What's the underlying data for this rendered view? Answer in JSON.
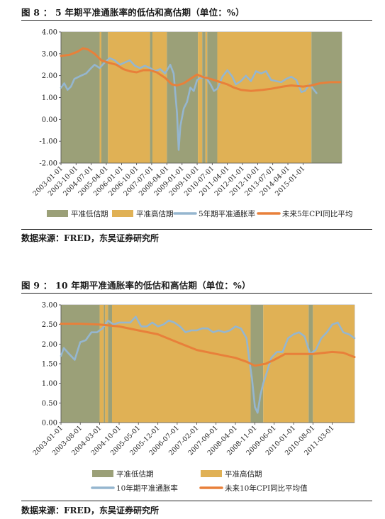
{
  "figures": [
    {
      "title": "图 8 ： 5 年期平准通胀率的低估和高估期（单位：%）",
      "source": "数据来源：FRED，东吴证券研究所"
    },
    {
      "title": "图 9 ： 10 年期平准通胀率的低估和高估期（单位：%）",
      "source": "数据来源：FRED，东吴证券研究所"
    }
  ],
  "colors": {
    "under": "#9ba078",
    "over": "#e0b155",
    "breakeven": "#95b6cf",
    "cpi": "#e8803a"
  },
  "chart_data": [
    {
      "type": "line",
      "ylim": [
        -2.0,
        4.0
      ],
      "yticks": [
        "4.00",
        "3.00",
        "2.00",
        "1.00",
        "0.00",
        "-1.00",
        "-2.00"
      ],
      "xlim": [
        "2003-01-01",
        "2016-12-01"
      ],
      "xticks": [
        "2003-01-01",
        "2003-10-01",
        "2004-07-01",
        "2005-04-01",
        "2006-01-01",
        "2006-10-01",
        "2007-07-01",
        "2008-04-01",
        "2009-01-01",
        "2009-10-01",
        "2010-07-01",
        "2011-04-01",
        "2012-01-01",
        "2012-10-01",
        "2013-07-01",
        "2014-04-01",
        "2015-01-01"
      ],
      "shaded_periods": [
        {
          "type": "under",
          "start": "2003-01-01",
          "end": "2004-12-01"
        },
        {
          "type": "over",
          "start": "2004-12-01",
          "end": "2005-01-01"
        },
        {
          "type": "under",
          "start": "2005-01-01",
          "end": "2005-05-01"
        },
        {
          "type": "over",
          "start": "2005-05-01",
          "end": "2007-06-01"
        },
        {
          "type": "under",
          "start": "2007-06-01",
          "end": "2007-07-15"
        },
        {
          "type": "over",
          "start": "2007-07-15",
          "end": "2008-04-01"
        },
        {
          "type": "under",
          "start": "2008-04-01",
          "end": "2009-10-15"
        },
        {
          "type": "over",
          "start": "2009-10-15",
          "end": "2010-01-01"
        },
        {
          "type": "under",
          "start": "2010-01-01",
          "end": "2010-03-01"
        },
        {
          "type": "over",
          "start": "2010-03-01",
          "end": "2010-04-01"
        },
        {
          "type": "under",
          "start": "2010-04-01",
          "end": "2010-10-01"
        },
        {
          "type": "over",
          "start": "2010-10-01",
          "end": "2015-06-01"
        },
        {
          "type": "under",
          "start": "2015-06-01",
          "end": "2016-12-01"
        }
      ],
      "series": [
        {
          "name": "5年期平准通胀率",
          "kind": "breakeven",
          "points": [
            [
              "2003-01-01",
              1.45
            ],
            [
              "2003-03-01",
              1.65
            ],
            [
              "2003-05-01",
              1.35
            ],
            [
              "2003-07-01",
              1.5
            ],
            [
              "2003-09-01",
              1.85
            ],
            [
              "2004-01-01",
              2.0
            ],
            [
              "2004-04-01",
              2.1
            ],
            [
              "2004-07-01",
              2.35
            ],
            [
              "2004-09-01",
              2.5
            ],
            [
              "2004-12-01",
              2.35
            ],
            [
              "2005-03-01",
              2.6
            ],
            [
              "2005-06-01",
              2.8
            ],
            [
              "2005-09-01",
              2.7
            ],
            [
              "2005-12-01",
              2.5
            ],
            [
              "2006-03-01",
              2.6
            ],
            [
              "2006-06-01",
              2.7
            ],
            [
              "2006-09-01",
              2.45
            ],
            [
              "2006-12-01",
              2.35
            ],
            [
              "2007-03-01",
              2.45
            ],
            [
              "2007-06-01",
              2.35
            ],
            [
              "2007-09-01",
              2.2
            ],
            [
              "2007-12-01",
              2.3
            ],
            [
              "2008-03-01",
              2.1
            ],
            [
              "2008-06-01",
              2.5
            ],
            [
              "2008-08-01",
              2.1
            ],
            [
              "2008-10-01",
              0.3
            ],
            [
              "2008-11-01",
              -1.4
            ],
            [
              "2008-12-01",
              -0.3
            ],
            [
              "2009-02-01",
              0.5
            ],
            [
              "2009-04-01",
              0.8
            ],
            [
              "2009-06-01",
              1.45
            ],
            [
              "2009-08-01",
              1.3
            ],
            [
              "2009-10-01",
              1.8
            ],
            [
              "2009-12-01",
              1.9
            ],
            [
              "2010-03-01",
              1.95
            ],
            [
              "2010-06-01",
              1.6
            ],
            [
              "2010-08-01",
              1.3
            ],
            [
              "2010-10-01",
              1.4
            ],
            [
              "2011-01-01",
              1.95
            ],
            [
              "2011-04-01",
              2.25
            ],
            [
              "2011-07-01",
              1.95
            ],
            [
              "2011-09-01",
              1.6
            ],
            [
              "2011-12-01",
              1.75
            ],
            [
              "2012-03-01",
              2.0
            ],
            [
              "2012-06-01",
              1.75
            ],
            [
              "2012-09-01",
              2.2
            ],
            [
              "2012-12-01",
              2.1
            ],
            [
              "2013-03-01",
              2.2
            ],
            [
              "2013-06-01",
              1.8
            ],
            [
              "2013-09-01",
              1.75
            ],
            [
              "2013-12-01",
              1.7
            ],
            [
              "2014-03-01",
              1.85
            ],
            [
              "2014-06-01",
              1.95
            ],
            [
              "2014-09-01",
              1.8
            ],
            [
              "2014-12-01",
              1.25
            ],
            [
              "2015-02-01",
              1.3
            ],
            [
              "2015-05-01",
              1.6
            ],
            [
              "2015-08-01",
              1.3
            ],
            [
              "2015-09-01",
              1.2
            ]
          ]
        },
        {
          "name": "未来5年CPI同比平均",
          "kind": "cpi",
          "points": [
            [
              "2003-01-01",
              2.9
            ],
            [
              "2003-06-01",
              2.95
            ],
            [
              "2003-11-01",
              3.1
            ],
            [
              "2004-02-01",
              3.25
            ],
            [
              "2004-05-01",
              3.2
            ],
            [
              "2004-09-01",
              3.0
            ],
            [
              "2005-01-01",
              2.7
            ],
            [
              "2005-05-01",
              2.6
            ],
            [
              "2005-10-01",
              2.5
            ],
            [
              "2006-02-01",
              2.3
            ],
            [
              "2006-06-01",
              2.2
            ],
            [
              "2006-10-01",
              2.15
            ],
            [
              "2007-02-01",
              2.25
            ],
            [
              "2007-06-01",
              2.25
            ],
            [
              "2007-10-01",
              2.15
            ],
            [
              "2008-03-01",
              1.9
            ],
            [
              "2008-07-01",
              1.6
            ],
            [
              "2008-10-01",
              1.55
            ],
            [
              "2009-02-01",
              1.65
            ],
            [
              "2009-06-01",
              1.85
            ],
            [
              "2009-10-01",
              2.05
            ],
            [
              "2010-01-01",
              1.95
            ],
            [
              "2010-06-01",
              1.85
            ],
            [
              "2010-12-01",
              1.7
            ],
            [
              "2011-04-01",
              1.6
            ],
            [
              "2011-08-01",
              1.45
            ],
            [
              "2011-12-01",
              1.35
            ],
            [
              "2012-06-01",
              1.3
            ],
            [
              "2013-01-01",
              1.35
            ],
            [
              "2013-06-01",
              1.4
            ],
            [
              "2014-01-01",
              1.5
            ],
            [
              "2014-06-01",
              1.55
            ],
            [
              "2015-01-01",
              1.5
            ],
            [
              "2015-06-01",
              1.55
            ],
            [
              "2015-11-01",
              1.65
            ],
            [
              "2016-05-01",
              1.7
            ],
            [
              "2016-11-01",
              1.7
            ]
          ]
        }
      ],
      "legend": [
        {
          "label": "平准低估期",
          "kind": "under"
        },
        {
          "label": "平准高估期",
          "kind": "over"
        },
        {
          "label": "5年期平准通胀率",
          "kind": "breakeven"
        },
        {
          "label": "未来5年CPI同比平均",
          "kind": "cpi"
        }
      ]
    },
    {
      "type": "line",
      "ylim": [
        0.0,
        3.0
      ],
      "yticks": [
        "3.00",
        "2.50",
        "2.00",
        "1.50",
        "1.00",
        "0.50",
        "0.00"
      ],
      "xlim": [
        "2003-01-01",
        "2011-11-01"
      ],
      "xticks": [
        "2003-01-01",
        "2003-08-01",
        "2004-03-01",
        "2004-10-01",
        "2005-05-01",
        "2005-12-01",
        "2006-07-01",
        "2007-02-01",
        "2007-09-01",
        "2008-04-01",
        "2008-11-01",
        "2009-06-01",
        "2010-01-01",
        "2010-08-01",
        "2011-03-01"
      ],
      "shaded_periods": [
        {
          "type": "under",
          "start": "2003-01-01",
          "end": "2004-03-01"
        },
        {
          "type": "over",
          "start": "2004-03-01",
          "end": "2004-04-15"
        },
        {
          "type": "under",
          "start": "2004-04-15",
          "end": "2004-05-01"
        },
        {
          "type": "over",
          "start": "2004-05-01",
          "end": "2004-06-01"
        },
        {
          "type": "under",
          "start": "2004-06-01",
          "end": "2004-07-15"
        },
        {
          "type": "over",
          "start": "2004-07-15",
          "end": "2008-09-15"
        },
        {
          "type": "under",
          "start": "2008-09-15",
          "end": "2009-02-01"
        },
        {
          "type": "over",
          "start": "2009-02-01",
          "end": "2010-06-15"
        },
        {
          "type": "under",
          "start": "2010-06-15",
          "end": "2010-08-01"
        },
        {
          "type": "over",
          "start": "2010-08-01",
          "end": "2011-11-01"
        }
      ],
      "series": [
        {
          "name": "10年期平准通胀率",
          "kind": "breakeven",
          "points": [
            [
              "2003-01-01",
              1.7
            ],
            [
              "2003-02-01",
              1.9
            ],
            [
              "2003-04-01",
              1.75
            ],
            [
              "2003-06-01",
              1.6
            ],
            [
              "2003-08-01",
              2.05
            ],
            [
              "2003-10-01",
              2.1
            ],
            [
              "2003-12-01",
              2.3
            ],
            [
              "2004-02-01",
              2.3
            ],
            [
              "2004-04-01",
              2.4
            ],
            [
              "2004-06-01",
              2.6
            ],
            [
              "2004-08-01",
              2.5
            ],
            [
              "2004-10-01",
              2.55
            ],
            [
              "2004-12-01",
              2.55
            ],
            [
              "2005-02-01",
              2.55
            ],
            [
              "2005-04-01",
              2.7
            ],
            [
              "2005-06-01",
              2.45
            ],
            [
              "2005-08-01",
              2.45
            ],
            [
              "2005-10-01",
              2.55
            ],
            [
              "2005-12-01",
              2.45
            ],
            [
              "2006-02-01",
              2.5
            ],
            [
              "2006-04-01",
              2.6
            ],
            [
              "2006-06-01",
              2.55
            ],
            [
              "2006-08-01",
              2.45
            ],
            [
              "2006-10-01",
              2.3
            ],
            [
              "2006-12-01",
              2.35
            ],
            [
              "2007-02-01",
              2.35
            ],
            [
              "2007-04-01",
              2.4
            ],
            [
              "2007-06-01",
              2.4
            ],
            [
              "2007-08-01",
              2.3
            ],
            [
              "2007-10-01",
              2.35
            ],
            [
              "2007-12-01",
              2.3
            ],
            [
              "2008-02-01",
              2.35
            ],
            [
              "2008-04-01",
              2.45
            ],
            [
              "2008-06-01",
              2.4
            ],
            [
              "2008-08-01",
              2.15
            ],
            [
              "2008-09-01",
              1.6
            ],
            [
              "2008-10-01",
              1.1
            ],
            [
              "2008-11-01",
              0.4
            ],
            [
              "2008-12-01",
              0.25
            ],
            [
              "2009-01-01",
              0.7
            ],
            [
              "2009-02-01",
              1.0
            ],
            [
              "2009-03-01",
              1.2
            ],
            [
              "2009-05-01",
              1.65
            ],
            [
              "2009-07-01",
              1.8
            ],
            [
              "2009-09-01",
              1.8
            ],
            [
              "2009-11-01",
              2.15
            ],
            [
              "2010-01-01",
              2.25
            ],
            [
              "2010-03-01",
              2.3
            ],
            [
              "2010-05-01",
              2.2
            ],
            [
              "2010-07-01",
              1.75
            ],
            [
              "2010-09-01",
              1.85
            ],
            [
              "2010-11-01",
              2.15
            ],
            [
              "2011-01-01",
              2.3
            ],
            [
              "2011-03-01",
              2.5
            ],
            [
              "2011-05-01",
              2.55
            ],
            [
              "2011-07-01",
              2.3
            ],
            [
              "2011-09-01",
              2.25
            ],
            [
              "2011-11-01",
              2.15
            ]
          ]
        },
        {
          "name": "未来10年CPI同比平均值",
          "kind": "cpi",
          "points": [
            [
              "2003-01-01",
              2.52
            ],
            [
              "2003-08-01",
              2.52
            ],
            [
              "2004-03-01",
              2.5
            ],
            [
              "2004-10-01",
              2.45
            ],
            [
              "2005-05-01",
              2.35
            ],
            [
              "2005-12-01",
              2.25
            ],
            [
              "2006-07-01",
              2.05
            ],
            [
              "2007-02-01",
              1.85
            ],
            [
              "2007-09-01",
              1.75
            ],
            [
              "2008-04-01",
              1.65
            ],
            [
              "2008-08-01",
              1.55
            ],
            [
              "2008-11-01",
              1.45
            ],
            [
              "2009-03-01",
              1.5
            ],
            [
              "2009-06-01",
              1.6
            ],
            [
              "2009-10-01",
              1.75
            ],
            [
              "2010-01-01",
              1.75
            ],
            [
              "2010-08-01",
              1.75
            ],
            [
              "2011-03-01",
              1.8
            ],
            [
              "2011-07-01",
              1.78
            ],
            [
              "2011-11-01",
              1.67
            ]
          ]
        }
      ],
      "legend": [
        {
          "label": "平准低估期",
          "kind": "under"
        },
        {
          "label": "平准高估期",
          "kind": "over"
        },
        {
          "label": "10年期平准通胀率",
          "kind": "breakeven"
        },
        {
          "label": "未来10年CPI同比平均值",
          "kind": "cpi"
        }
      ]
    }
  ]
}
